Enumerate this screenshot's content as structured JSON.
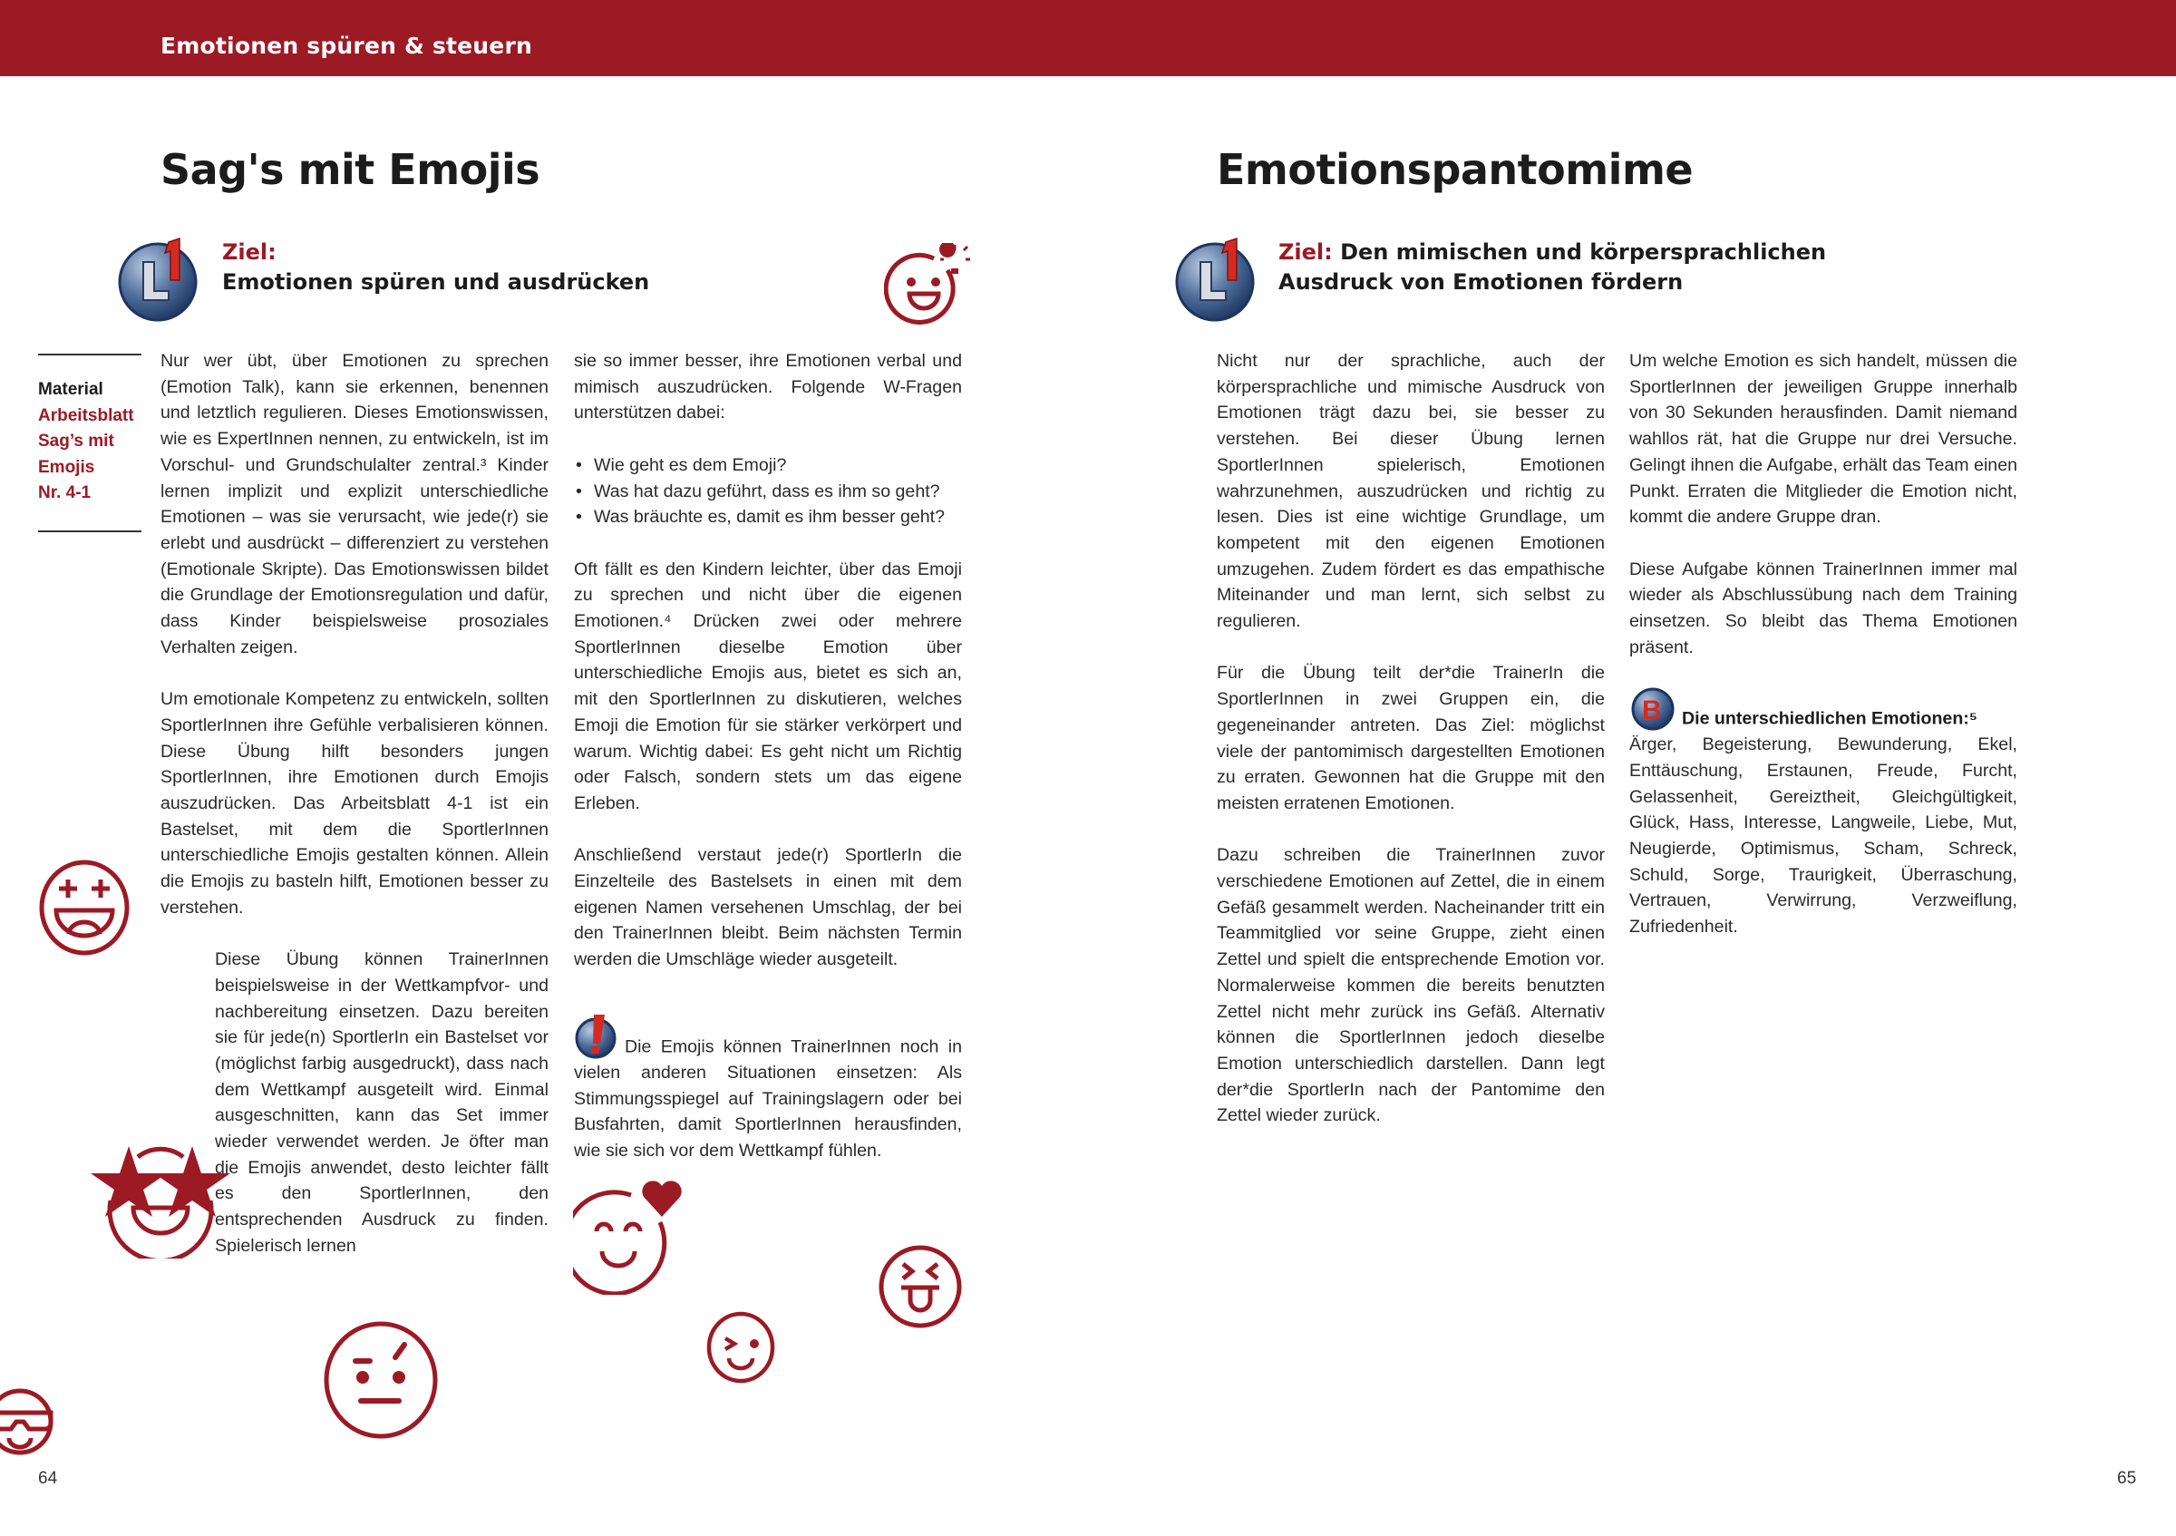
{
  "header": {
    "title": "Emotionen spüren & steuern",
    "color": "#9c1a24"
  },
  "left_page": {
    "title": "Sag's mit Emojis",
    "ziel_label": "Ziel:",
    "ziel_text": "Emotionen spüren und ausdrücken",
    "sidebar": {
      "label": "Material",
      "lines": [
        "Arbeitsblatt",
        "Sag’s mit",
        "Emojis",
        "Nr. 4-1"
      ]
    },
    "column1": [
      "Nur wer übt, über Emotionen zu sprechen (Emotion Talk), kann sie erkennen, benennen und letztlich regulieren. Dieses Emotionswissen, wie es ExpertInnen nennen, zu entwickeln, ist im Vorschul- und Grundschulalter zentral.³ Kinder lernen implizit und explizit unterschiedliche Emotionen – was sie verursacht, wie jede(r) sie erlebt und ausdrückt – differenziert zu verstehen (Emotionale Skripte). Das Emotionswissen bildet die Grundlage der Emotionsregulation und dafür, dass Kinder beispielsweise prosoziales Verhalten zeigen.",
      "Um emotionale Kompetenz zu entwickeln, sollten SportlerInnen ihre Gefühle verbalisieren können. Diese Übung hilft besonders jungen SportlerInnen, ihre Emotionen durch Emojis auszudrücken. Das Arbeitsblatt 4-1 ist ein Bastelset, mit dem die SportlerInnen unterschiedliche Emojis gestalten können. Allein die Emojis zu basteln hilft, Emotionen besser zu verstehen.",
      "Diese Übung können TrainerInnen beispielsweise in der Wettkampfvor- und nachbereitung einsetzen. Dazu bereiten sie für jede(n) SportlerIn ein Bastelset vor (möglichst farbig ausgedruckt), dass nach dem Wettkampf ausgeteilt wird. Einmal ausgeschnitten, kann das Set immer wieder verwendet werden. Je öfter man die Emojis anwendet, desto leichter fällt es den SportlerInnen, den entsprechenden Ausdruck zu finden. Spielerisch lernen"
    ],
    "column2_intro": "sie so immer besser, ihre Emotionen verbal und mimisch auszudrücken. Folgende W-Fragen unterstützen dabei:",
    "questions": [
      "Wie geht es dem Emoji?",
      "Was hat dazu geführt, dass es ihm so geht?",
      "Was bräuchte es, damit es ihm besser geht?"
    ],
    "column2": [
      "Oft fällt es den Kindern leichter, über das Emoji zu sprechen und nicht über die eigenen Emotionen.⁴ Drücken zwei oder mehrere SportlerInnen dieselbe Emotion über unterschiedliche Emojis aus, bietet es sich an, mit den SportlerInnen zu diskutieren, welches Emoji die Emotion für sie stärker verkörpert und warum. Wichtig dabei: Es geht nicht um Richtig oder Falsch, sondern stets um das eigene Erleben.",
      "Anschließend verstaut jede(r) SportlerIn die Einzelteile des Bastelsets in einen mit dem eigenen Namen versehenen Umschlag, der bei den TrainerInnen bleibt. Beim nächsten Termin werden die Umschläge wieder ausgeteilt."
    ],
    "tip": "Die Emojis können TrainerInnen noch in vielen anderen Situationen einsetzen: Als Stimmungsspiegel auf Trainingslagern oder bei Busfahrten, damit SportlerInnen herausfinden, wie sie sich vor dem Wettkampf fühlen.",
    "page_number": "64"
  },
  "right_page": {
    "title": "Emotionspantomime",
    "ziel_label": "Ziel:",
    "ziel_line1": "Den mimischen und körpersprachlichen",
    "ziel_line2": "Ausdruck von Emotionen fördern",
    "column1": [
      "Nicht nur der sprachliche, auch der körpersprachliche und mimische Ausdruck von Emotionen trägt dazu bei, sie besser zu verstehen. Bei dieser Übung lernen SportlerInnen spielerisch, Emotionen wahrzunehmen, auszudrücken und richtig zu lesen. Dies ist eine wichtige Grundlage, um kompetent mit den eigenen Emotionen umzugehen. Zudem fördert es das empathische Miteinander und man lernt, sich selbst zu regulieren.",
      "Für die Übung teilt der*die TrainerIn die SportlerInnen in zwei Gruppen ein, die gegeneinander antreten. Das Ziel: möglichst viele der pantomimisch dargestellten Emotionen zu erraten. Gewonnen hat die Gruppe mit den meisten erratenen Emotionen.",
      "Dazu schreiben die TrainerInnen zuvor verschiedene Emotionen auf Zettel, die in einem Gefäß gesammelt werden. Nacheinander tritt ein Teammitglied vor seine Gruppe, zieht einen Zettel und spielt die entsprechende Emotion vor. Normalerweise kommen die bereits benutzten Zettel nicht mehr zurück ins Gefäß. Alternativ können die SportlerInnen jedoch dieselbe Emotion unterschiedlich darstellen. Dann legt der*die SportlerIn nach der Pantomime den Zettel wieder zurück."
    ],
    "column2": [
      "Um welche Emotion es sich handelt, müssen die SportlerInnen der jeweiligen Gruppe innerhalb von 30 Sekunden herausfinden. Damit niemand wahllos rät, hat die Gruppe nur drei Versuche. Gelingt ihnen die Aufgabe, erhält das Team einen Punkt. Erraten die Mitglieder die Emotion nicht, kommt die andere Gruppe dran.",
      "Diese Aufgabe können TrainerInnen immer mal wieder als Abschlussübung nach dem Training einsetzen. So bleibt das Thema Emotionen präsent."
    ],
    "emotions_heading": "Die unterschiedlichen Emotionen:⁵",
    "emotions_list": "Ärger, Begeisterung, Bewunderung, Ekel, Enttäuschung, Erstaunen, Freude, Furcht, Gelassenheit, Gereiztheit, Gleichgültigkeit, Glück, Hass, Interesse, Langweile, Liebe, Mut, Neugierde, Optimismus, Scham, Schreck, Schuld, Sorge, Traurigkeit, Überraschung, Vertrauen, Verwirrung, Verzweiflung, Zufriedenheit.",
    "page_number": "65"
  },
  "icons": {
    "ziel": "level-1-badge-icon",
    "tip": "exclamation-badge-icon",
    "b": "b-badge-icon",
    "emojis": [
      "lightbulb-smile-emoji",
      "laughing-plus-eyes-emoji",
      "star-eyes-emoji",
      "heart-smile-emoji",
      "tongue-emoji",
      "wink-emoji",
      "skeptical-emoji",
      "sunglasses-emoji"
    ]
  }
}
